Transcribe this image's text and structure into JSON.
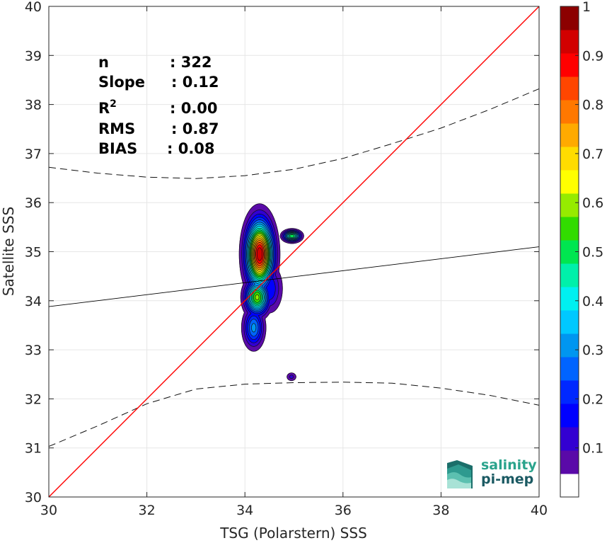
{
  "chart_data": {
    "type": "heatmap",
    "subtype": "density-contour-scatter",
    "xlabel": "TSG (Polarstern) SSS",
    "ylabel": "Satellite SSS",
    "xlim": [
      30,
      40
    ],
    "ylim": [
      30,
      40
    ],
    "xticks": [
      "30",
      "32",
      "34",
      "36",
      "38",
      "40"
    ],
    "yticks": [
      "30",
      "31",
      "32",
      "33",
      "34",
      "35",
      "36",
      "37",
      "38",
      "39",
      "40"
    ],
    "grid": true,
    "stats": [
      {
        "label": "n",
        "value": ": 322"
      },
      {
        "label": "Slope",
        "value": ": 0.12"
      },
      {
        "label": "R",
        "sup": "2",
        "value": ": 0.00"
      },
      {
        "label": "RMS",
        "value": ": 0.87"
      },
      {
        "label": "BIAS",
        "value": ": 0.08"
      }
    ],
    "one_to_one_line": {
      "x": [
        30,
        40
      ],
      "y": [
        30,
        40
      ],
      "color": "#ff0000"
    },
    "regression_line": {
      "x": [
        30,
        40
      ],
      "y": [
        33.88,
        35.1
      ],
      "color": "#000000"
    },
    "confidence_upper": {
      "x": [
        30,
        31,
        32,
        33,
        34,
        35,
        36,
        37,
        38,
        39,
        40
      ],
      "y": [
        36.72,
        36.6,
        36.52,
        36.49,
        36.55,
        36.68,
        36.9,
        37.2,
        37.52,
        37.9,
        38.32
      ]
    },
    "confidence_lower": {
      "x": [
        30,
        31,
        32,
        33,
        34,
        35,
        36,
        37,
        38,
        39,
        40
      ],
      "y": [
        31.03,
        31.45,
        31.9,
        32.2,
        32.3,
        32.33,
        32.34,
        32.32,
        32.22,
        32.07,
        31.87
      ]
    },
    "colorbar": {
      "ticks": [
        "0.1",
        "0.2",
        "0.3",
        "0.4",
        "0.5",
        "0.6",
        "0.7",
        "0.8",
        "0.9",
        "1"
      ],
      "min": 0,
      "max": 1,
      "levels": [
        0.05,
        0.1,
        0.15,
        0.2,
        0.25,
        0.3,
        0.35,
        0.4,
        0.45,
        0.5,
        0.55,
        0.6,
        0.65,
        0.7,
        0.75,
        0.8,
        0.85,
        0.9,
        0.95
      ],
      "colors": [
        "#ffffff",
        "#5a0aa8",
        "#3300d2",
        "#0000ff",
        "#0028ff",
        "#0064ff",
        "#0096f0",
        "#00c8ff",
        "#00f0f0",
        "#00f0aa",
        "#00e650",
        "#32dc00",
        "#96eb00",
        "#ffff00",
        "#ffdc00",
        "#ffaa00",
        "#ff7800",
        "#ff4600",
        "#ff0000",
        "#d20000",
        "#8c0000"
      ]
    },
    "density_blobs": [
      {
        "x": 34.3,
        "y": 34.95,
        "sx": 0.17,
        "sy": 0.42,
        "peak": 1.0
      },
      {
        "x": 34.25,
        "y": 34.07,
        "sx": 0.15,
        "sy": 0.22,
        "peak": 0.62
      },
      {
        "x": 34.18,
        "y": 33.45,
        "sx": 0.13,
        "sy": 0.25,
        "peak": 0.32
      },
      {
        "x": 34.5,
        "y": 34.25,
        "sx": 0.16,
        "sy": 0.3,
        "peak": 0.2
      },
      {
        "x": 34.96,
        "y": 35.32,
        "sx": 0.11,
        "sy": 0.07,
        "peak": 0.55
      },
      {
        "x": 34.95,
        "y": 32.45,
        "sx": 0.07,
        "sy": 0.06,
        "peak": 0.12
      }
    ]
  },
  "logo": {
    "line1": "salinity",
    "line2": "pi-mep"
  }
}
